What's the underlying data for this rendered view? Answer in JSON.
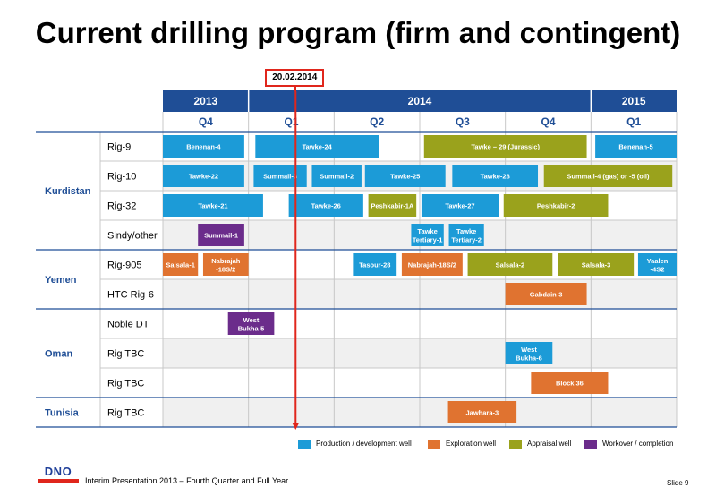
{
  "title": "Current drilling program (firm and contingent)",
  "today_label": "20.02.2014",
  "footer": {
    "presentation": "Interim Presentation 2013 – Fourth Quarter and Full Year",
    "slide": "Slide 9",
    "logo": "DNO"
  },
  "colors": {
    "header": "#1f4e96",
    "production": "#1c9bd7",
    "exploration": "#e07330",
    "appraisal": "#9aa21c",
    "workover": "#6b2c8b",
    "today_line": "#e0261c",
    "grid": "#c8c8c8",
    "row_alt": "#f0f0f0"
  },
  "legend": [
    {
      "key": "production",
      "label": "Production / development well"
    },
    {
      "key": "exploration",
      "label": "Exploration well"
    },
    {
      "key": "appraisal",
      "label": "Appraisal well"
    },
    {
      "key": "workover",
      "label": "Workover / completion"
    }
  ],
  "chart_data": {
    "type": "table",
    "timeline": {
      "start": "2013-Q4",
      "end": "2015-Q1",
      "years": [
        {
          "label": "2013",
          "quarters": 1
        },
        {
          "label": "2014",
          "quarters": 4
        },
        {
          "label": "2015",
          "quarters": 1
        }
      ],
      "quarters": [
        "Q4",
        "Q1",
        "Q2",
        "Q3",
        "Q4",
        "Q1"
      ],
      "today_quarter_offset": 1.55
    },
    "groups": [
      {
        "label": "Kurdistan",
        "rows": [
          "Rig-9",
          "Rig-10",
          "Rig-32",
          "Sindy/other"
        ]
      },
      {
        "label": "Yemen",
        "rows": [
          "Rig-905",
          "HTC Rig-6"
        ]
      },
      {
        "label": "Oman",
        "rows": [
          "Noble DT",
          "Rig TBC",
          "Rig TBC"
        ]
      },
      {
        "label": "Tunisia",
        "rows": [
          "Rig TBC"
        ]
      }
    ],
    "wells": [
      {
        "row": 0,
        "label": "Benenan-4",
        "type": "production",
        "start": 0.0,
        "end": 0.95
      },
      {
        "row": 0,
        "label": "Tawke-24",
        "type": "production",
        "start": 1.08,
        "end": 2.52
      },
      {
        "row": 0,
        "label": "Tawke – 29 (Jurassic)",
        "type": "appraisal",
        "start": 3.05,
        "end": 4.95
      },
      {
        "row": 0,
        "label": "Benenan-5",
        "type": "production",
        "start": 5.05,
        "end": 6.0
      },
      {
        "row": 1,
        "label": "Tawke-22",
        "type": "production",
        "start": 0.0,
        "end": 0.95
      },
      {
        "row": 1,
        "label": "Summail-3",
        "type": "production",
        "start": 1.06,
        "end": 1.68
      },
      {
        "row": 1,
        "label": "Summail-2",
        "type": "production",
        "start": 1.74,
        "end": 2.32
      },
      {
        "row": 1,
        "label": "Tawke-25",
        "type": "production",
        "start": 2.36,
        "end": 3.3
      },
      {
        "row": 1,
        "label": "Tawke-28",
        "type": "production",
        "start": 3.38,
        "end": 4.38
      },
      {
        "row": 1,
        "label": "Summail-4 (gas) or -5 (oil)",
        "type": "appraisal",
        "start": 4.45,
        "end": 5.95
      },
      {
        "row": 2,
        "label": "Tawke-21",
        "type": "production",
        "start": 0.0,
        "end": 1.17
      },
      {
        "row": 2,
        "label": "Tawke-26",
        "type": "production",
        "start": 1.47,
        "end": 2.34
      },
      {
        "row": 2,
        "label": "Peshkabir-1A",
        "type": "appraisal",
        "start": 2.4,
        "end": 2.96
      },
      {
        "row": 2,
        "label": "Tawke-27",
        "type": "production",
        "start": 3.02,
        "end": 3.92
      },
      {
        "row": 2,
        "label": "Peshkabir-2",
        "type": "appraisal",
        "start": 3.98,
        "end": 5.2
      },
      {
        "row": 3,
        "label": "Summail-1",
        "type": "workover",
        "start": 0.41,
        "end": 0.95
      },
      {
        "row": 3,
        "label": "Tawke Tertiary-1",
        "type": "production",
        "start": 2.9,
        "end": 3.28
      },
      {
        "row": 3,
        "label": "Tawke Tertiary-2",
        "type": "production",
        "start": 3.34,
        "end": 3.75
      },
      {
        "row": 4,
        "label": "Salsala-1",
        "type": "exploration",
        "start": 0.0,
        "end": 0.41
      },
      {
        "row": 4,
        "label": "Nabrajah -18S/2",
        "type": "exploration",
        "start": 0.47,
        "end": 1.0
      },
      {
        "row": 4,
        "label": "Tasour-28",
        "type": "production",
        "start": 2.22,
        "end": 2.73
      },
      {
        "row": 4,
        "label": "Nabrajah-18S/2",
        "type": "exploration",
        "start": 2.79,
        "end": 3.5
      },
      {
        "row": 4,
        "label": "Salsala-2",
        "type": "appraisal",
        "start": 3.56,
        "end": 4.55
      },
      {
        "row": 4,
        "label": "Salsala-3",
        "type": "appraisal",
        "start": 4.62,
        "end": 5.5
      },
      {
        "row": 4,
        "label": "Yaalen -4S2",
        "type": "production",
        "start": 5.55,
        "end": 6.0
      },
      {
        "row": 5,
        "label": "Gabdain-3",
        "type": "exploration",
        "start": 4.0,
        "end": 4.95
      },
      {
        "row": 6,
        "label": "West Bukha-5",
        "type": "workover",
        "start": 0.76,
        "end": 1.3
      },
      {
        "row": 7,
        "label": "West Bukha-6",
        "type": "production",
        "start": 4.0,
        "end": 4.55
      },
      {
        "row": 8,
        "label": "Block 36",
        "type": "exploration",
        "start": 4.3,
        "end": 5.2
      },
      {
        "row": 9,
        "label": "Jawhara-3",
        "type": "exploration",
        "start": 3.33,
        "end": 4.13
      }
    ]
  }
}
